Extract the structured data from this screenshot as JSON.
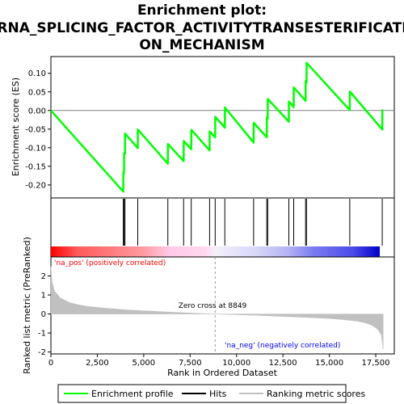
{
  "chart_data": {
    "type": "line",
    "title_lines": [
      "Enrichment plot:",
      "RNA_SPLICING_FACTOR_ACTIVITYTRANSESTERIFICATI",
      "ON_MECHANISM"
    ],
    "xlabel": "Rank in Ordered Dataset",
    "es_ylabel": "Enrichment score (ES)",
    "metric_ylabel": "Ranked list metric (PreRanked)",
    "xlim": [
      0,
      18500
    ],
    "x_ticks": [
      0,
      2500,
      5000,
      7500,
      10000,
      12500,
      15000,
      17500
    ],
    "x_tick_labels": [
      "0",
      "2,500",
      "5,000",
      "7,500",
      "10,000",
      "12,500",
      "15,000",
      "17,500"
    ],
    "es_ylim": [
      -0.235,
      0.145
    ],
    "es_ticks": [
      0.1,
      0.05,
      0.0,
      -0.05,
      -0.1,
      -0.15,
      -0.2
    ],
    "es_tick_labels": [
      "0.10",
      "0.05",
      "0.00",
      "-0.05",
      "-0.10",
      "-0.15",
      "-0.20"
    ],
    "metric_ylim": [
      -2.1,
      3.0
    ],
    "metric_ticks": [
      2,
      1,
      0,
      -1,
      -2
    ],
    "metric_tick_labels": [
      "2",
      "1",
      "0",
      "-1",
      "-2"
    ],
    "enrichment_profile": {
      "name": "Enrichment profile",
      "color": "#00ff00",
      "x": [
        0,
        3900,
        3905,
        3940,
        3945,
        3990,
        3995,
        4680,
        4685,
        6300,
        6305,
        7150,
        7155,
        7560,
        7565,
        8550,
        8555,
        8850,
        8855,
        9370,
        9375,
        10920,
        10925,
        11630,
        11635,
        11680,
        11685,
        12820,
        12825,
        13080,
        13085,
        13720,
        13725,
        13770,
        13775,
        16100,
        16105,
        17850,
        17855
      ],
      "y": [
        0.0,
        -0.218,
        -0.167,
        -0.168,
        -0.115,
        -0.116,
        -0.062,
        -0.101,
        -0.051,
        -0.143,
        -0.09,
        -0.136,
        -0.082,
        -0.104,
        -0.052,
        -0.107,
        -0.056,
        -0.072,
        -0.017,
        -0.046,
        0.008,
        -0.086,
        -0.033,
        -0.072,
        -0.019,
        -0.022,
        0.031,
        -0.03,
        0.024,
        0.009,
        0.062,
        0.026,
        0.079,
        0.076,
        0.128,
        0.001,
        0.051,
        -0.051,
        0.003
      ]
    },
    "hits": {
      "name": "Hits",
      "color": "#000000",
      "x": [
        3900,
        3945,
        3990,
        4680,
        6300,
        7150,
        7560,
        8550,
        8850,
        9370,
        10920,
        11630,
        11680,
        12820,
        13080,
        13720,
        13770,
        16100,
        17850
      ]
    },
    "ranking_metric": {
      "name": "Ranking metric scores",
      "color": "#c0c0c0",
      "x": [
        0,
        60,
        200,
        500,
        1000,
        1500,
        2000,
        3000,
        4000,
        5000,
        6000,
        7000,
        8000,
        8849,
        10000,
        11000,
        12000,
        13000,
        14000,
        15000,
        16000,
        16500,
        17000,
        17300,
        17600,
        17800,
        17900
      ],
      "y": [
        2.5,
        1.7,
        1.2,
        0.85,
        0.6,
        0.48,
        0.4,
        0.3,
        0.22,
        0.17,
        0.12,
        0.07,
        0.03,
        0.0,
        -0.04,
        -0.07,
        -0.11,
        -0.15,
        -0.19,
        -0.24,
        -0.32,
        -0.38,
        -0.48,
        -0.6,
        -0.8,
        -1.1,
        -1.85
      ]
    },
    "zero_cross_label": "Zero cross at 8849",
    "zero_cross_x": 8849,
    "pos_label": "'na_pos' (positively correlated)",
    "neg_label": "'na_neg' (negatively correlated)",
    "pos_color": "#ff0000",
    "neg_color": "#0000ff",
    "legend_position": "bottom",
    "legend": [
      {
        "label": "Enrichment profile",
        "color": "#00ff00"
      },
      {
        "label": "Hits",
        "color": "#000000"
      },
      {
        "label": "Ranking metric scores",
        "color": "#c0c0c0"
      }
    ]
  }
}
